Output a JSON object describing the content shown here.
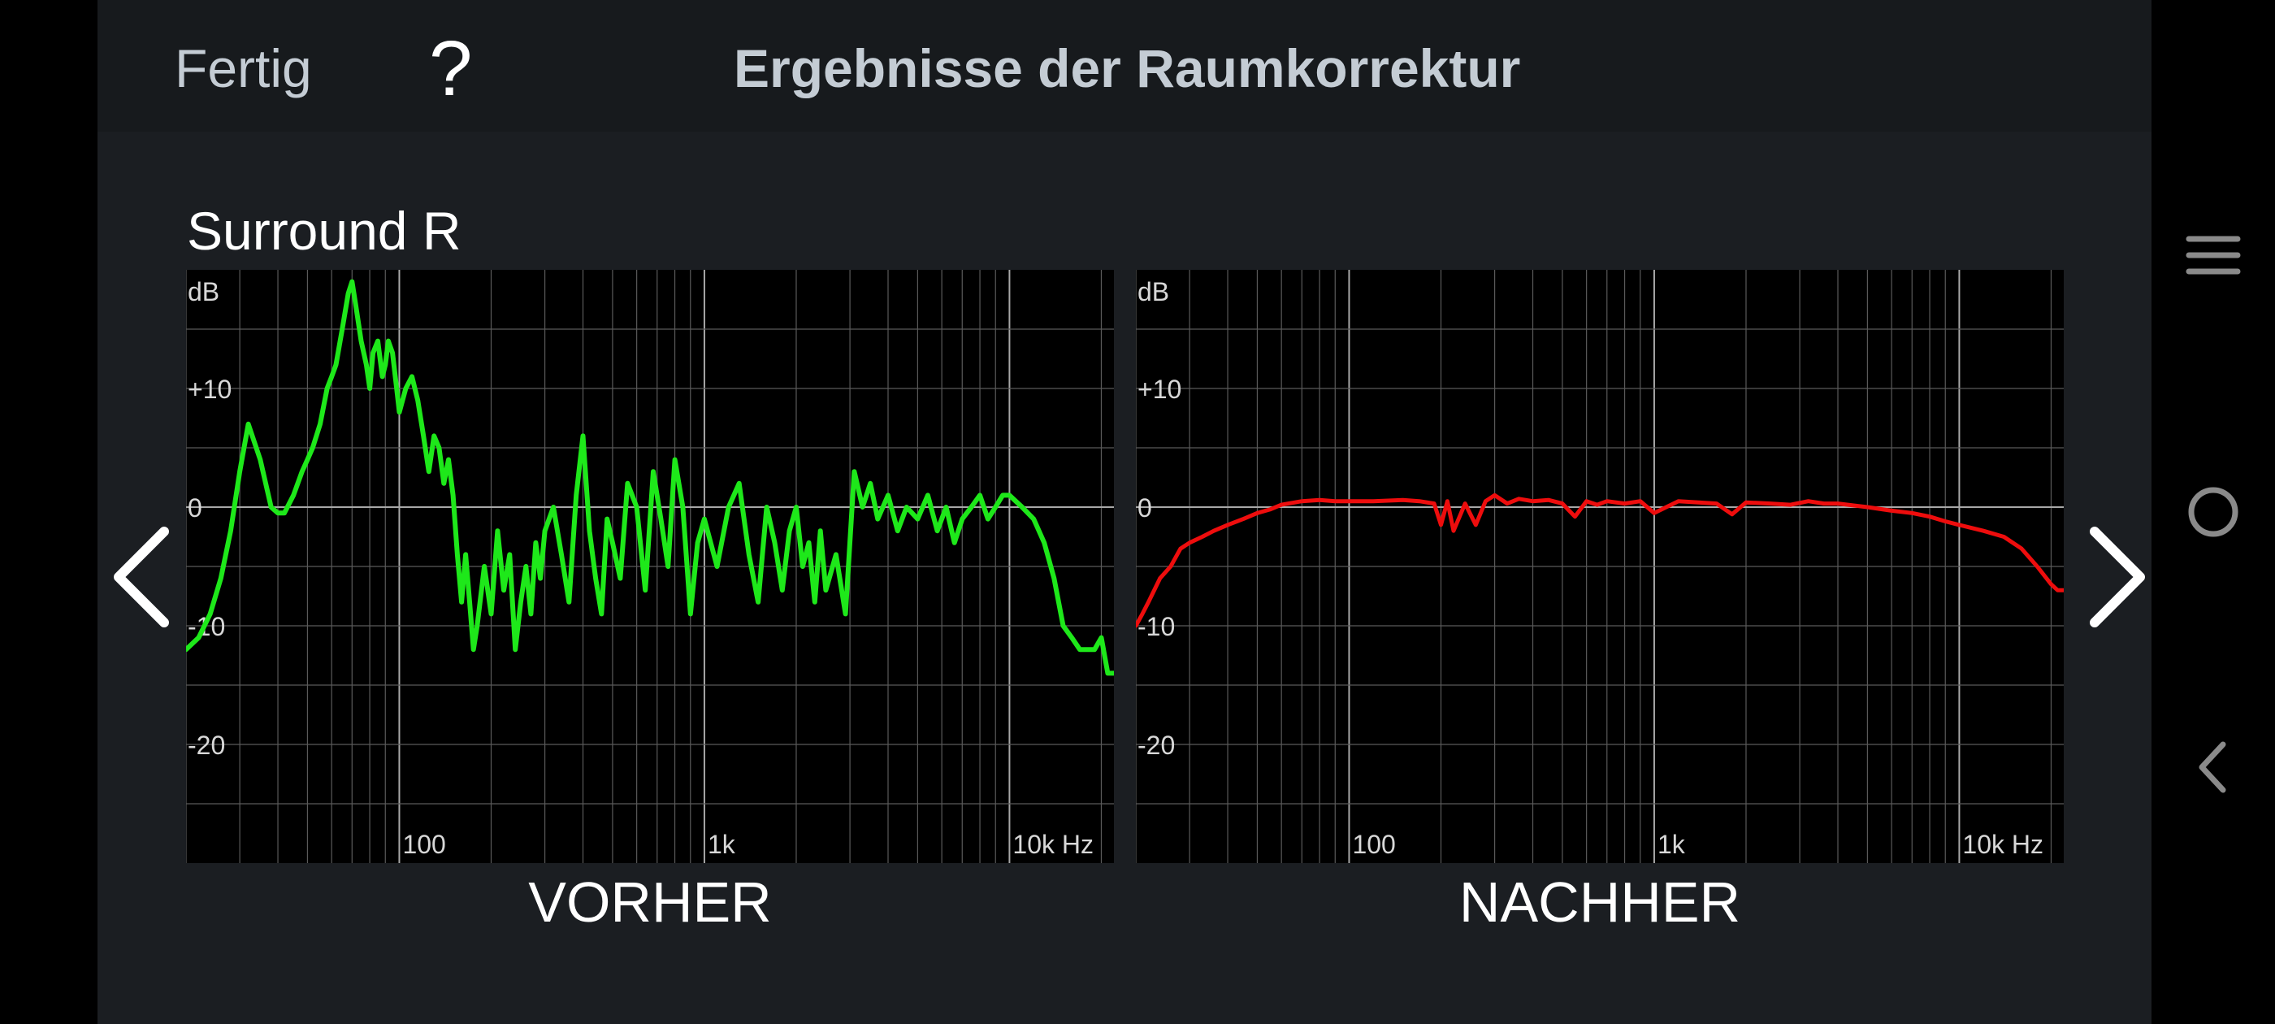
{
  "header": {
    "done_label": "Fertig",
    "help_label": "?",
    "title": "Ergebnisse der Raumkorrektur"
  },
  "channel_name": "Surround R",
  "icons": {
    "prev": "chevron-left-icon",
    "next": "chevron-right-icon",
    "system_menu": "menu-icon",
    "system_home": "home-circle-icon",
    "system_back": "back-icon"
  },
  "colors": {
    "before_curve": "#1ee81a",
    "after_curve": "#ee0d0d",
    "background": "#1b1e22",
    "chart_bg": "#000000",
    "grid": "#5a5a5a"
  },
  "chart_data": [
    {
      "type": "line",
      "caption": "VORHER",
      "ylabel": "dB",
      "y_tick_labels": [
        "+10",
        "0",
        "-10",
        "-20"
      ],
      "x_tick_labels": [
        "100",
        "1k",
        "10k Hz"
      ],
      "x_scale": "log",
      "xlim": [
        20,
        22000
      ],
      "ylim": [
        -30,
        20
      ],
      "grid": true,
      "series": [
        {
          "color": "#1ee81a",
          "x": [
            20,
            22,
            24,
            26,
            28,
            30,
            32,
            35,
            38,
            40,
            42,
            45,
            48,
            50,
            52,
            55,
            58,
            60,
            62,
            65,
            68,
            70,
            72,
            75,
            78,
            80,
            82,
            85,
            88,
            90,
            92,
            95,
            98,
            100,
            105,
            110,
            115,
            120,
            125,
            130,
            135,
            140,
            145,
            150,
            155,
            160,
            165,
            170,
            175,
            180,
            190,
            200,
            210,
            220,
            230,
            240,
            250,
            260,
            270,
            280,
            290,
            300,
            320,
            340,
            360,
            380,
            400,
            420,
            440,
            460,
            480,
            500,
            530,
            560,
            600,
            640,
            680,
            720,
            760,
            800,
            850,
            900,
            950,
            1000,
            1100,
            1200,
            1300,
            1400,
            1500,
            1600,
            1700,
            1800,
            1900,
            2000,
            2100,
            2200,
            2300,
            2400,
            2500,
            2700,
            2900,
            3100,
            3300,
            3500,
            3700,
            4000,
            4300,
            4600,
            5000,
            5400,
            5800,
            6200,
            6600,
            7000,
            7500,
            8000,
            8500,
            9000,
            9500,
            10000,
            11000,
            12000,
            13000,
            14000,
            15000,
            16000,
            17000,
            18000,
            19000,
            20000,
            21000,
            22000
          ],
          "y": [
            -12,
            -11,
            -9,
            -6,
            -2,
            3,
            7,
            4,
            0,
            -0.5,
            -0.5,
            1,
            3,
            4,
            5,
            7,
            10,
            11,
            12,
            15,
            18,
            19,
            17,
            14,
            12,
            10,
            13,
            14,
            11,
            12,
            14,
            13,
            10,
            8,
            10,
            11,
            9,
            6,
            3,
            6,
            5,
            2,
            4,
            1,
            -4,
            -8,
            -4,
            -8,
            -12,
            -10,
            -5,
            -9,
            -2,
            -7,
            -4,
            -12,
            -8,
            -5,
            -9,
            -3,
            -6,
            -2,
            0,
            -4,
            -8,
            1,
            6,
            -2,
            -6,
            -9,
            -1,
            -3,
            -6,
            2,
            0,
            -7,
            3,
            -1,
            -5,
            4,
            0,
            -9,
            -3,
            -1,
            -5,
            0,
            2,
            -4,
            -8,
            0,
            -3,
            -7,
            -2,
            0,
            -5,
            -3,
            -8,
            -2,
            -7,
            -4,
            -9,
            3,
            0,
            2,
            -1,
            1,
            -2,
            0,
            -1,
            1,
            -2,
            0,
            -3,
            -1,
            0,
            1,
            -1,
            0,
            1,
            1,
            0,
            -1,
            -3,
            -6,
            -10,
            -11,
            -12,
            -12,
            -12,
            -11,
            -14,
            -14
          ]
        }
      ]
    },
    {
      "type": "line",
      "caption": "NACHHER",
      "ylabel": "dB",
      "y_tick_labels": [
        "+10",
        "0",
        "-10",
        "-20"
      ],
      "x_tick_labels": [
        "100",
        "1k",
        "10k Hz"
      ],
      "x_scale": "log",
      "xlim": [
        20,
        22000
      ],
      "ylim": [
        -30,
        20
      ],
      "grid": true,
      "series": [
        {
          "color": "#ee0d0d",
          "x": [
            20,
            21,
            22,
            24,
            26,
            28,
            30,
            33,
            36,
            40,
            45,
            50,
            55,
            60,
            70,
            80,
            90,
            100,
            120,
            150,
            170,
            190,
            200,
            210,
            220,
            240,
            260,
            280,
            300,
            330,
            360,
            400,
            450,
            500,
            550,
            600,
            650,
            700,
            800,
            900,
            1000,
            1200,
            1400,
            1600,
            1800,
            2000,
            2400,
            2800,
            3200,
            3600,
            4000,
            5000,
            6000,
            7000,
            8000,
            9000,
            10000,
            12000,
            14000,
            16000,
            18000,
            20000,
            21000,
            22000
          ],
          "y": [
            -10,
            -9,
            -8,
            -6,
            -5,
            -3.5,
            -3,
            -2.5,
            -2,
            -1.5,
            -1,
            -0.5,
            -0.2,
            0.2,
            0.5,
            0.6,
            0.5,
            0.5,
            0.5,
            0.6,
            0.5,
            0.3,
            -1.5,
            0.5,
            -2,
            0.3,
            -1.5,
            0.5,
            1,
            0.3,
            0.7,
            0.5,
            0.6,
            0.3,
            -0.8,
            0.5,
            0.2,
            0.5,
            0.3,
            0.5,
            -0.5,
            0.5,
            0.4,
            0.3,
            -0.6,
            0.4,
            0.3,
            0.2,
            0.5,
            0.3,
            0.3,
            0,
            -0.3,
            -0.5,
            -0.8,
            -1.2,
            -1.5,
            -2,
            -2.5,
            -3.5,
            -5,
            -6.5,
            -7,
            -7
          ]
        }
      ]
    }
  ]
}
